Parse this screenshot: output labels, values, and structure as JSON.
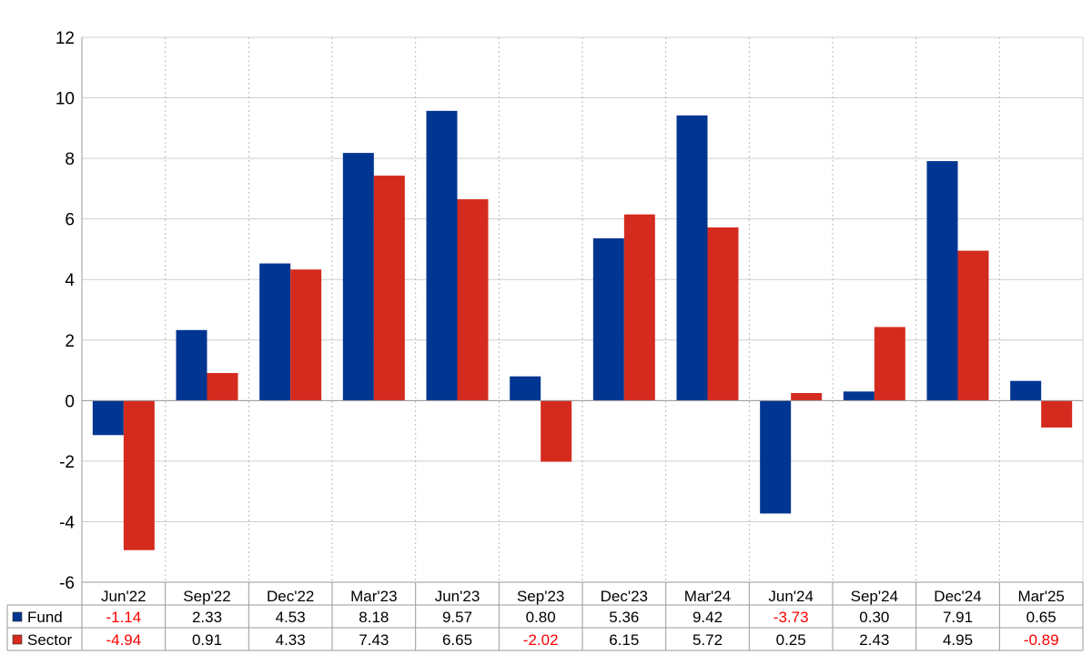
{
  "chart_data": {
    "type": "bar",
    "title": "",
    "xlabel": "",
    "ylabel": "",
    "ylim": [
      -6,
      12
    ],
    "yticks": [
      -6,
      -4,
      -2,
      0,
      2,
      4,
      6,
      8,
      10,
      12
    ],
    "ytick_labels": [
      "-6",
      "-4",
      "-2",
      "0",
      "2",
      "4",
      "6",
      "8",
      "10",
      "12"
    ],
    "grid": true,
    "legend": "data-table-bottom",
    "categories": [
      "Jun'22",
      "Sep'22",
      "Dec'22",
      "Mar'23",
      "Jun'23",
      "Sep'23",
      "Dec'23",
      "Mar'24",
      "Jun'24",
      "Sep'24",
      "Dec'24",
      "Mar'25"
    ],
    "series": [
      {
        "name": "Fund",
        "color": "#003591",
        "values": [
          -1.14,
          2.33,
          4.53,
          8.18,
          9.57,
          0.8,
          5.36,
          9.42,
          -3.73,
          0.3,
          7.91,
          0.65
        ],
        "labels": [
          "-1.14",
          "2.33",
          "4.53",
          "8.18",
          "9.57",
          "0.80",
          "5.36",
          "9.42",
          "-3.73",
          "0.30",
          "7.91",
          "0.65"
        ]
      },
      {
        "name": "Sector",
        "color": "#d42b1e",
        "values": [
          -4.94,
          0.91,
          4.33,
          7.43,
          6.65,
          -2.02,
          6.15,
          5.72,
          0.25,
          2.43,
          4.95,
          -0.89
        ],
        "labels": [
          "-4.94",
          "0.91",
          "4.33",
          "7.43",
          "6.65",
          "-2.02",
          "6.15",
          "5.72",
          "0.25",
          "2.43",
          "4.95",
          "-0.89"
        ]
      }
    ],
    "negative_value_color": "#ff0000"
  }
}
